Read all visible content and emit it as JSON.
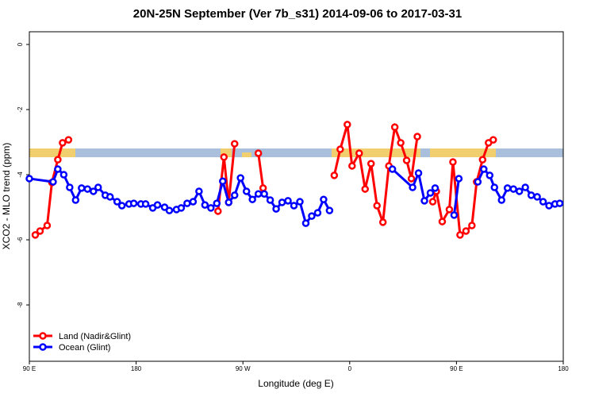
{
  "chart_data": {
    "type": "line",
    "title": "20N-25N September (Ver 7b_s31)   2014-09-06 to 2017-03-31",
    "xlabel": "Longitude (deg E)",
    "ylabel": "XCO2 - MLO trend (ppm)",
    "xlim": [
      90,
      540
    ],
    "ylim": [
      -9.73,
      0.39
    ],
    "xticks": [
      {
        "value": 90,
        "label": "90 E"
      },
      180,
      {
        "value": 270,
        "label": "90 W"
      },
      {
        "value": 360,
        "label": "0"
      },
      {
        "value": 450,
        "label": "90 E"
      },
      {
        "value": 540,
        "label": "180"
      }
    ],
    "yticks": [
      0,
      -2,
      -4,
      -6,
      -8
    ],
    "legend": "bottom-left",
    "series": [
      {
        "name": "Land (Nadir&Glint)",
        "color": "#ff0000",
        "x": [
          95,
          99,
          105,
          109,
          114,
          118,
          123,
          200,
          249,
          254,
          258,
          263,
          275,
          283,
          287,
          320,
          347,
          352,
          358,
          362,
          368,
          373,
          378,
          383,
          388,
          393,
          398,
          403,
          408,
          412,
          417,
          425,
          430,
          433,
          438,
          444,
          447,
          453,
          458,
          463,
          467,
          472,
          477,
          481
        ],
        "values": [
          -5.85,
          -5.73,
          -5.56,
          -4.24,
          -3.54,
          -3.02,
          -2.93,
          null,
          -5.12,
          -3.46,
          -4.85,
          -3.05,
          null,
          -3.34,
          -4.41,
          null,
          -4.02,
          -3.22,
          -2.46,
          -3.73,
          -3.34,
          -4.44,
          -3.66,
          -4.95,
          -5.46,
          -3.73,
          -2.54,
          -3.02,
          -3.56,
          -4.12,
          -2.83,
          null,
          -4.83,
          -4.51,
          -5.44,
          -5.07,
          -3.61,
          -5.85,
          -5.73,
          -5.56,
          -4.22,
          -3.54,
          -3.02,
          -2.93
        ]
      },
      {
        "name": "Ocean (Glint)",
        "color": "#0000ff",
        "x": [
          90,
          110,
          114,
          119,
          124,
          129,
          134,
          139,
          144,
          148,
          154,
          158,
          164,
          168,
          174,
          178,
          184,
          188,
          194,
          198,
          204,
          208,
          214,
          218,
          223,
          228,
          233,
          238,
          243,
          248,
          253,
          258,
          263,
          268,
          273,
          278,
          283,
          288,
          293,
          298,
          303,
          308,
          313,
          318,
          323,
          328,
          333,
          338,
          343,
          370,
          396,
          413,
          418,
          423,
          428,
          432,
          440,
          448,
          452,
          460,
          468,
          473,
          478,
          482,
          488,
          493,
          498,
          503,
          508,
          513,
          518,
          523,
          528,
          533,
          537
        ],
        "values": [
          -4.12,
          -4.22,
          -3.83,
          -4.0,
          -4.39,
          -4.78,
          -4.41,
          -4.44,
          -4.51,
          -4.39,
          -4.63,
          -4.68,
          -4.83,
          -4.95,
          -4.9,
          -4.88,
          -4.9,
          -4.9,
          -5.02,
          -4.93,
          -5.0,
          -5.1,
          -5.07,
          -5.02,
          -4.88,
          -4.83,
          -4.51,
          -4.93,
          -5.02,
          -4.88,
          -4.2,
          -4.85,
          -4.63,
          -4.1,
          -4.51,
          -4.76,
          -4.59,
          -4.59,
          -4.78,
          -5.05,
          -4.85,
          -4.8,
          -4.95,
          -4.83,
          -5.49,
          -5.27,
          -5.17,
          -4.76,
          -5.1,
          null,
          -3.83,
          -4.39,
          -3.95,
          -4.8,
          -4.56,
          -4.41,
          null,
          -5.24,
          -4.12,
          null,
          -4.22,
          -3.83,
          -4.02,
          -4.39,
          -4.78,
          -4.41,
          -4.44,
          -4.51,
          -4.39,
          -4.63,
          -4.68,
          -4.83,
          -4.95,
          -4.9,
          -4.88
        ]
      }
    ]
  }
}
